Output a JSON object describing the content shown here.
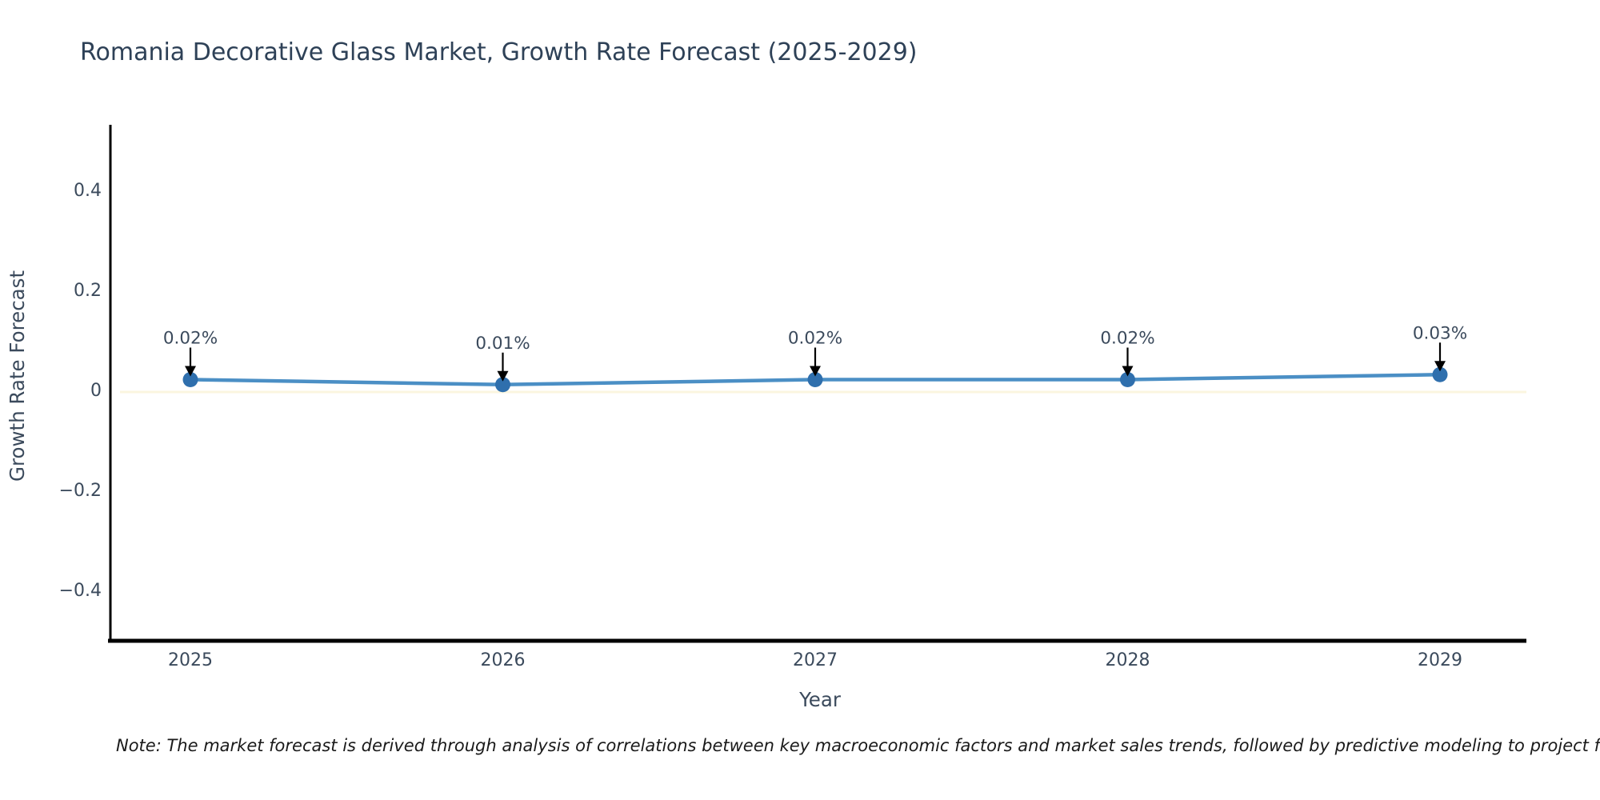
{
  "title": "Romania Decorative Glass Market, Growth Rate Forecast (2025-2029)",
  "note": "Note: The market forecast is derived through analysis of correlations between key macroeconomic factors and market sales trends, followed by predictive modeling to project future sales.",
  "chart_data": {
    "type": "line",
    "title": "Romania Decorative Glass Market, Growth Rate Forecast (2025-2029)",
    "xlabel": "Year",
    "ylabel": "Growth Rate Forecast",
    "x": [
      2025,
      2026,
      2027,
      2028,
      2029
    ],
    "values": [
      0.02,
      0.01,
      0.02,
      0.02,
      0.03
    ],
    "point_labels": [
      "0.02%",
      "0.01%",
      "0.02%",
      "0.02%",
      "0.03%"
    ],
    "xtick_labels": [
      "2025",
      "2026",
      "2027",
      "2028",
      "2029"
    ],
    "ytick_values": [
      0.4,
      0.2,
      0,
      -0.2,
      -0.4
    ],
    "ytick_labels": [
      "0.4",
      "0.2",
      "0",
      "−0.2",
      "−0.4"
    ],
    "ylim": [
      -0.5,
      0.53
    ],
    "grid": false,
    "legend": false,
    "colors": {
      "line": "#4b8fc5",
      "marker": "#2f6fad",
      "annotation_arrow": "#000000",
      "axis_spine": "#000000",
      "tick_text": "#3b4a5c",
      "title_text": "#2e4157",
      "zero_band": "#fbf6df",
      "background": "#ffffff"
    }
  }
}
